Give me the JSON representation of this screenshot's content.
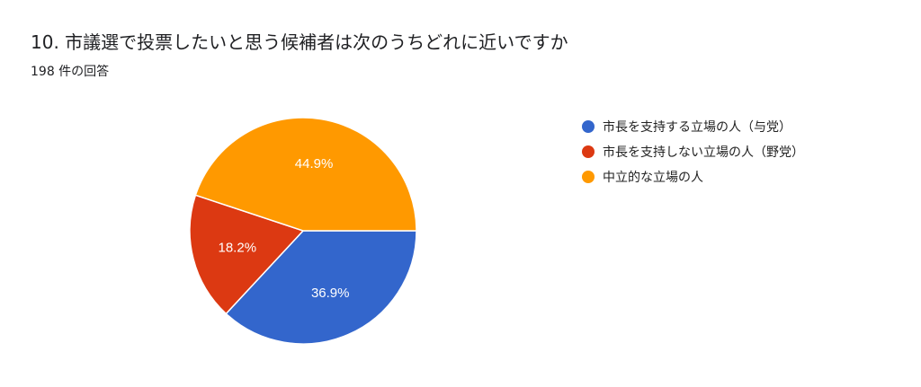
{
  "header": {
    "title": "10. 市議選で投票したいと思う候補者は次のうちどれに近いですか",
    "subtitle": "198 件の回答"
  },
  "chart_data": {
    "type": "pie",
    "title": "10. 市議選で投票したいと思う候補者は次のうちどれに近いですか",
    "subtitle": "198 件の回答",
    "legend_position": "right",
    "slices": [
      {
        "name": "市長を支持する立場の人（与党）",
        "value": 36.9,
        "label": "36.9%",
        "color": "#3366cc"
      },
      {
        "name": "市長を支持しない立場の人（野党）",
        "value": 18.2,
        "label": "18.2%",
        "color": "#dc3912"
      },
      {
        "name": "中立的な立場の人",
        "value": 44.9,
        "label": "44.9%",
        "color": "#ff9900"
      }
    ]
  }
}
